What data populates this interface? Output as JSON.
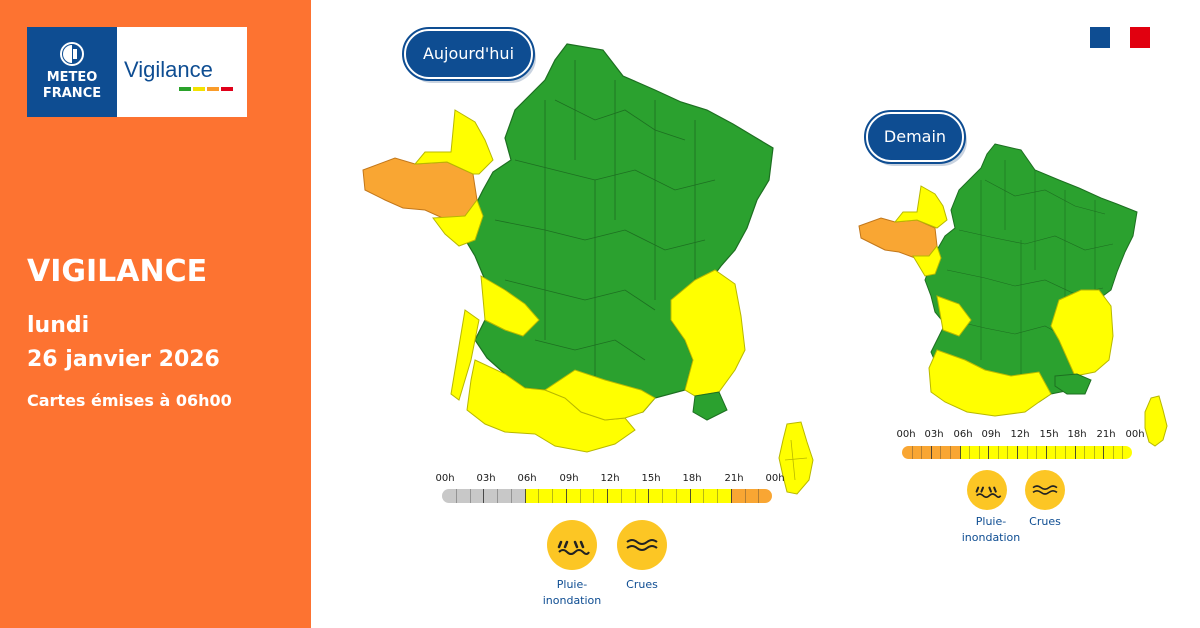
{
  "brand": {
    "logo_line1": "METEO",
    "logo_line2": "FRANCE",
    "product": "Vigilance",
    "bar_colors": [
      "#2aa22a",
      "#f3e200",
      "#fa9c2a",
      "#e0001a"
    ]
  },
  "title": {
    "headline": "VIGILANCE",
    "day": "lundi",
    "date": "26 janvier 2026",
    "issued": "Cartes émises à 06h00"
  },
  "colors": {
    "panel": "#fd7331",
    "navy": "#0e4d92",
    "green": "#28a745",
    "yellow": "#ffff00",
    "orange": "#f9a633"
  },
  "today": {
    "label": "Aujourd'hui",
    "timeline": {
      "hours": [
        "00h",
        "03h",
        "06h",
        "09h",
        "12h",
        "15h",
        "18h",
        "21h",
        "00h"
      ],
      "periods": [
        {
          "from": 0,
          "to": 6,
          "level": "none"
        },
        {
          "from": 6,
          "to": 21,
          "level": "yellow"
        },
        {
          "from": 21,
          "to": 24,
          "level": "orange"
        }
      ]
    },
    "hazards": [
      {
        "icon": "rain-flood-icon",
        "label_line1": "Pluie-",
        "label_line2": "inondation"
      },
      {
        "icon": "flood-waves-icon",
        "label_line1": "Crues",
        "label_line2": ""
      }
    ]
  },
  "tomorrow": {
    "label": "Demain",
    "timeline": {
      "hours": [
        "00h",
        "03h",
        "06h",
        "09h",
        "12h",
        "15h",
        "18h",
        "21h",
        "00h"
      ],
      "periods": [
        {
          "from": 0,
          "to": 6,
          "level": "orange"
        },
        {
          "from": 6,
          "to": 24,
          "level": "yellow"
        }
      ]
    },
    "hazards": [
      {
        "icon": "rain-flood-icon",
        "label_line1": "Pluie-",
        "label_line2": "inondation"
      },
      {
        "icon": "flood-waves-icon",
        "label_line1": "Crues",
        "label_line2": ""
      }
    ]
  }
}
